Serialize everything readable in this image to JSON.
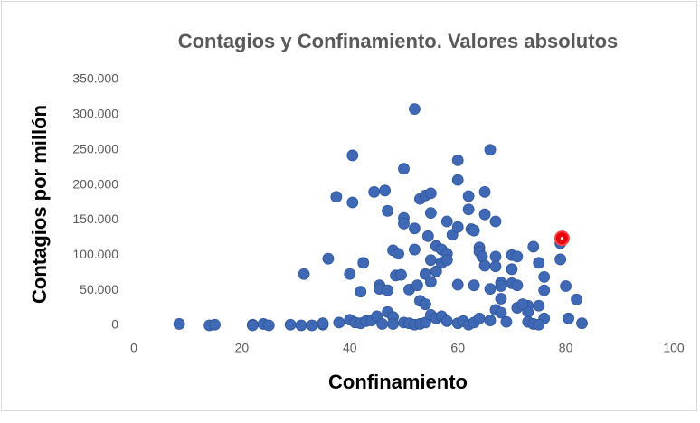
{
  "chart_data": {
    "type": "scatter",
    "title": "Contagios y Confinamiento. Valores absolutos",
    "x_label": "Confinamiento",
    "y_label": "Contagios por millón",
    "xlim": [
      0,
      100
    ],
    "xticks": [
      0,
      20,
      40,
      60,
      80,
      100
    ],
    "ylim": [
      0,
      350000
    ],
    "yticks": [
      0,
      {
        "value": 50000,
        "label": "50.000"
      },
      {
        "value": 100000,
        "label": "100.000"
      },
      {
        "value": 150000,
        "label": "150.000"
      },
      {
        "value": 200000,
        "label": "200.000"
      },
      {
        "value": 250000,
        "label": "250.000"
      },
      {
        "value": 300000,
        "label": "300.000"
      },
      {
        "value": 350000,
        "label": "350.000"
      }
    ],
    "series": [
      {
        "color": "#3f68b5",
        "x": [
          8.4,
          14,
          15,
          22,
          22,
          24,
          25,
          29,
          31,
          33,
          35,
          35,
          38,
          31.5,
          36,
          37.5,
          40,
          40.5,
          40.5,
          42,
          42.5,
          44.5,
          45.5,
          45.5,
          46.5,
          47,
          47,
          48,
          48.5,
          49,
          49.5,
          50,
          50,
          50,
          51,
          52,
          52,
          52,
          52.5,
          53,
          54,
          55,
          54,
          55,
          53,
          54,
          54.5,
          55,
          56,
          57,
          55,
          56,
          57,
          58,
          59,
          58,
          58,
          60,
          60,
          60,
          60,
          62,
          62,
          62.5,
          63,
          63,
          64,
          64,
          64.5,
          65,
          65,
          65,
          66,
          66,
          67,
          67,
          67,
          68,
          68,
          68,
          67,
          68,
          70,
          70,
          70,
          71,
          71,
          71,
          74,
          73,
          73,
          75,
          75,
          76,
          76,
          76,
          79,
          79,
          80,
          80.5,
          82,
          83,
          40,
          41,
          42,
          43,
          44,
          45,
          46,
          47,
          48,
          48,
          50,
          51,
          52,
          53,
          54,
          55,
          56,
          57,
          58,
          60,
          61,
          62,
          63,
          64,
          66,
          69,
          72,
          73,
          74,
          75
        ],
        "values": [
          2000,
          0,
          1000,
          1000,
          0,
          2000,
          0,
          1000,
          0,
          0,
          1000,
          3000,
          4000,
          73000,
          95000,
          183000,
          73000,
          242000,
          175000,
          48000,
          89000,
          190000,
          57000,
          52000,
          192000,
          163000,
          50000,
          107000,
          71000,
          102000,
          72000,
          223000,
          153000,
          145000,
          51000,
          308000,
          138000,
          108000,
          57000,
          180000,
          185000,
          188000,
          73000,
          62000,
          35000,
          30000,
          127000,
          160000,
          113000,
          108000,
          93000,
          77000,
          89000,
          148000,
          129000,
          102000,
          93000,
          235000,
          207000,
          140000,
          58000,
          184000,
          165000,
          137000,
          135000,
          57000,
          111000,
          105000,
          98000,
          190000,
          158000,
          85000,
          250000,
          52000,
          148000,
          98000,
          84000,
          61000,
          56000,
          38000,
          22000,
          18000,
          100000,
          80000,
          60000,
          98000,
          57000,
          25000,
          112000,
          28000,
          19000,
          89000,
          28000,
          69000,
          50000,
          10000,
          117000,
          94000,
          56000,
          10000,
          37000,
          3000,
          8000,
          4000,
          3000,
          6000,
          7000,
          13000,
          2000,
          19000,
          12000,
          2000,
          4000,
          3000,
          1000,
          2000,
          4000,
          15000,
          10000,
          13000,
          6000,
          3000,
          6000,
          1000,
          4000,
          10000,
          7000,
          5000,
          30000,
          5000,
          2000,
          1000
        ]
      },
      {
        "color": "#e8000b",
        "x": [
          79.3
        ],
        "values": [
          124000
        ]
      }
    ]
  }
}
